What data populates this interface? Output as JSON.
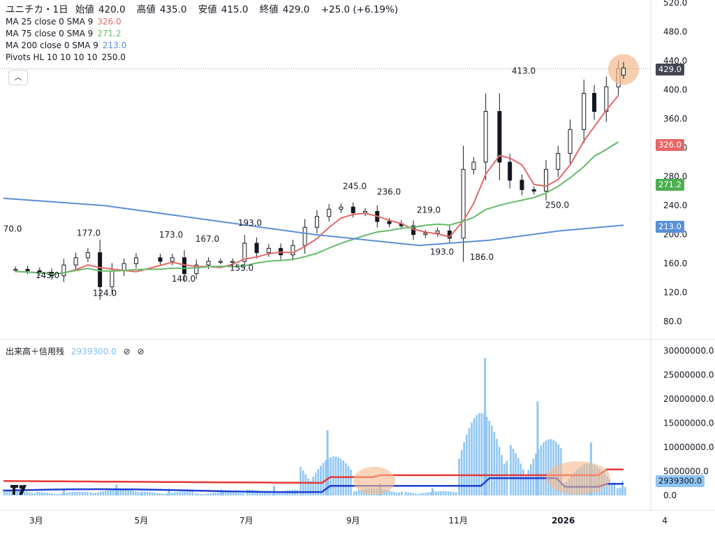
{
  "header": {
    "symbol": "ユニチカ・1日",
    "open_label": "始値",
    "open": "420.0",
    "high_label": "高値",
    "high": "435.0",
    "low_label": "安値",
    "low": "415.0",
    "close_label": "終値",
    "close": "429.0",
    "change": "+25.0 (+6.19%)"
  },
  "indicators": [
    {
      "name": "MA 25 close 0 SMA 9",
      "value": "326.0",
      "color": "#e46767"
    },
    {
      "name": "MA 75 close 0 SMA 9",
      "value": "271.2",
      "color": "#66bb6a"
    },
    {
      "name": "MA 200 close 0 SMA 9",
      "value": "213.0",
      "color": "#5b8fd6"
    },
    {
      "name": "Pivots HL 10 10 10 10",
      "value": "250.0",
      "color": "#131722"
    }
  ],
  "collapse_icon": "chevron-up-icon",
  "volume_panel": {
    "name": "出来高＋信用残",
    "value": "2939300.0",
    "icons": [
      "eye-off-icon",
      "eye-off-icon"
    ]
  },
  "price_tags": {
    "last": {
      "label": "429.0",
      "color": "#434651"
    },
    "ma25": {
      "label": "326.0",
      "color": "#e46767"
    },
    "ma75": {
      "label": "271.2",
      "color": "#4caf50"
    },
    "ma200": {
      "label": "213.0",
      "color": "#5b8fd6"
    },
    "volume": {
      "label": "2939300.0",
      "color": "#90c6f5"
    }
  },
  "chart_data": {
    "type": "candlestick",
    "title": "ユニチカ・1日",
    "x_ticks": [
      "3月",
      "5月",
      "7月",
      "9月",
      "11月",
      "2026",
      "4"
    ],
    "y_ticks": [
      "520.0",
      "480.0",
      "440.0",
      "400.0",
      "360.0",
      "320.0",
      "280.0",
      "240.0",
      "200.0",
      "160.0",
      "120.0",
      "80.0"
    ],
    "ylim": [
      60,
      520
    ],
    "pivot_labels": [
      {
        "text": "70.0",
        "type": "high"
      },
      {
        "text": "143.0",
        "type": "low"
      },
      {
        "text": "177.0",
        "type": "high"
      },
      {
        "text": "124.0",
        "type": "low"
      },
      {
        "text": "173.0",
        "type": "high"
      },
      {
        "text": "140.0",
        "type": "low"
      },
      {
        "text": "167.0",
        "type": "high"
      },
      {
        "text": "155.0",
        "type": "low"
      },
      {
        "text": "193.0",
        "type": "high"
      },
      {
        "text": "245.0",
        "type": "high"
      },
      {
        "text": "236.0",
        "type": "high"
      },
      {
        "text": "219.0",
        "type": "high"
      },
      {
        "text": "193.0",
        "type": "low"
      },
      {
        "text": "186.0",
        "type": "low"
      },
      {
        "text": "413.0",
        "type": "high"
      },
      {
        "text": "250.0",
        "type": "low"
      }
    ],
    "close_series": [
      {
        "date": "2025-02-17",
        "close": 152
      },
      {
        "date": "2025-02-24",
        "close": 150
      },
      {
        "date": "2025-03-03",
        "close": 148
      },
      {
        "date": "2025-03-10",
        "close": 143
      },
      {
        "date": "2025-03-17",
        "close": 158
      },
      {
        "date": "2025-03-24",
        "close": 168
      },
      {
        "date": "2025-03-31",
        "close": 175
      },
      {
        "date": "2025-04-07",
        "close": 128
      },
      {
        "date": "2025-04-14",
        "close": 150
      },
      {
        "date": "2025-04-21",
        "close": 160
      },
      {
        "date": "2025-04-28",
        "close": 168
      },
      {
        "date": "2025-05-12",
        "close": 163
      },
      {
        "date": "2025-05-19",
        "close": 168
      },
      {
        "date": "2025-05-26",
        "close": 146
      },
      {
        "date": "2025-06-02",
        "close": 158
      },
      {
        "date": "2025-06-09",
        "close": 163
      },
      {
        "date": "2025-06-16",
        "close": 163
      },
      {
        "date": "2025-06-23",
        "close": 163
      },
      {
        "date": "2025-06-30",
        "close": 188
      },
      {
        "date": "2025-07-07",
        "close": 175
      },
      {
        "date": "2025-07-14",
        "close": 181
      },
      {
        "date": "2025-07-21",
        "close": 172
      },
      {
        "date": "2025-07-28",
        "close": 185
      },
      {
        "date": "2025-08-04",
        "close": 210
      },
      {
        "date": "2025-08-11",
        "close": 225
      },
      {
        "date": "2025-08-18",
        "close": 235
      },
      {
        "date": "2025-08-25",
        "close": 238
      },
      {
        "date": "2025-09-01",
        "close": 230
      },
      {
        "date": "2025-09-08",
        "close": 232
      },
      {
        "date": "2025-09-15",
        "close": 218
      },
      {
        "date": "2025-09-22",
        "close": 215
      },
      {
        "date": "2025-09-29",
        "close": 212
      },
      {
        "date": "2025-10-06",
        "close": 200
      },
      {
        "date": "2025-10-13",
        "close": 202
      },
      {
        "date": "2025-10-20",
        "close": 205
      },
      {
        "date": "2025-10-27",
        "close": 195
      },
      {
        "date": "2025-11-04",
        "close": 290
      },
      {
        "date": "2025-11-10",
        "close": 300
      },
      {
        "date": "2025-11-17",
        "close": 370
      },
      {
        "date": "2025-11-25",
        "close": 300
      },
      {
        "date": "2025-12-01",
        "close": 275
      },
      {
        "date": "2025-12-08",
        "close": 262
      },
      {
        "date": "2025-12-15",
        "close": 260
      },
      {
        "date": "2025-12-22",
        "close": 290
      },
      {
        "date": "2025-12-29",
        "close": 312
      },
      {
        "date": "2026-01-05",
        "close": 345
      },
      {
        "date": "2026-01-13",
        "close": 395
      },
      {
        "date": "2026-01-19",
        "close": 370
      },
      {
        "date": "2026-01-26",
        "close": 404
      },
      {
        "date": "2026-02-02",
        "close": 429
      }
    ],
    "ma25_last": 326.0,
    "ma75_last": 271.2,
    "ma200_last": 213.0,
    "volume": {
      "y_ticks": [
        "30000000.0",
        "25000000.0",
        "20000000.0",
        "15000000.0",
        "10000000.0",
        "5000000.0",
        "0.0"
      ],
      "ylim": [
        0,
        30000000
      ],
      "series": [
        {
          "period": "2025-02",
          "volume": 1500000
        },
        {
          "period": "2025-03",
          "volume": 1300000
        },
        {
          "period": "2025-04",
          "volume": 2200000
        },
        {
          "period": "2025-05",
          "volume": 1400000
        },
        {
          "period": "2025-06",
          "volume": 1200000
        },
        {
          "period": "2025-07",
          "volume": 2000000
        },
        {
          "period": "2025-08",
          "volume": 13500000
        },
        {
          "period": "2025-09",
          "volume": 2500000
        },
        {
          "period": "2025-10",
          "volume": 1500000
        },
        {
          "period": "2025-11",
          "volume": 28500000
        },
        {
          "period": "2025-12",
          "volume": 19500000
        },
        {
          "period": "2026-01",
          "volume": 11000000
        },
        {
          "period": "2026-02",
          "volume": 2939300
        }
      ],
      "margin_buy_color": "#e53935",
      "margin_sell_color": "#1e3fcf"
    }
  }
}
